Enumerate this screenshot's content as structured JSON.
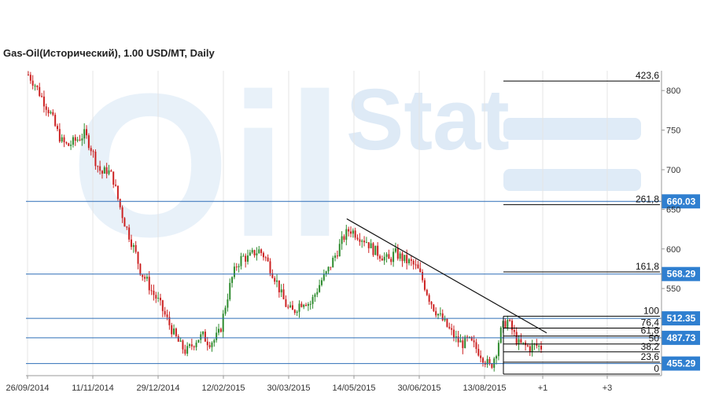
{
  "chart_data": {
    "type": "candlestick",
    "title": "Gas-Oil(Исторический), 1.00 USD/MT, Daily",
    "ylim": [
      440,
      825
    ],
    "y_ticks": [
      550,
      600,
      650,
      700,
      750,
      800
    ],
    "x_ticks": [
      "26/09/2014",
      "11/11/2014",
      "29/12/2014",
      "12/02/2015",
      "30/03/2015",
      "14/05/2015",
      "30/06/2015",
      "13/08/2015",
      "+1",
      "+3"
    ],
    "watermark": [
      "Oil",
      "Stat"
    ],
    "price_path": [
      [
        0,
        820
      ],
      [
        0.02,
        810
      ],
      [
        0.05,
        790
      ],
      [
        0.08,
        770
      ],
      [
        0.1,
        750
      ],
      [
        0.12,
        735
      ],
      [
        0.14,
        730
      ],
      [
        0.16,
        735
      ],
      [
        0.18,
        740
      ],
      [
        0.2,
        745
      ],
      [
        0.22,
        730
      ],
      [
        0.24,
        710
      ],
      [
        0.26,
        695
      ],
      [
        0.28,
        700
      ],
      [
        0.3,
        690
      ],
      [
        0.32,
        660
      ],
      [
        0.34,
        635
      ],
      [
        0.36,
        615
      ],
      [
        0.38,
        595
      ],
      [
        0.4,
        570
      ],
      [
        0.42,
        560
      ],
      [
        0.44,
        545
      ],
      [
        0.46,
        535
      ],
      [
        0.48,
        520
      ],
      [
        0.5,
        505
      ],
      [
        0.52,
        490
      ],
      [
        0.54,
        478
      ],
      [
        0.56,
        470
      ],
      [
        0.58,
        478
      ],
      [
        0.6,
        487
      ],
      [
        0.62,
        490
      ],
      [
        0.64,
        482
      ],
      [
        0.66,
        485
      ],
      [
        0.68,
        495
      ],
      [
        0.7,
        530
      ],
      [
        0.72,
        560
      ],
      [
        0.74,
        580
      ],
      [
        0.76,
        590
      ],
      [
        0.78,
        588
      ],
      [
        0.8,
        595
      ],
      [
        0.82,
        598
      ],
      [
        0.84,
        590
      ],
      [
        0.86,
        575
      ],
      [
        0.88,
        560
      ],
      [
        0.9,
        540
      ],
      [
        0.92,
        525
      ],
      [
        0.94,
        520
      ],
      [
        0.96,
        530
      ],
      [
        0.98,
        535
      ],
      [
        1.0,
        530
      ],
      [
        1.02,
        545
      ],
      [
        1.04,
        560
      ],
      [
        1.06,
        570
      ],
      [
        1.08,
        585
      ],
      [
        1.1,
        600
      ],
      [
        1.12,
        615
      ],
      [
        1.14,
        625
      ],
      [
        1.16,
        620
      ],
      [
        1.18,
        615
      ],
      [
        1.2,
        610
      ],
      [
        1.22,
        600
      ],
      [
        1.24,
        595
      ],
      [
        1.26,
        590
      ],
      [
        1.28,
        585
      ],
      [
        1.3,
        595
      ],
      [
        1.32,
        590
      ],
      [
        1.34,
        585
      ],
      [
        1.36,
        582
      ],
      [
        1.38,
        575
      ],
      [
        1.4,
        560
      ],
      [
        1.42,
        540
      ],
      [
        1.44,
        525
      ],
      [
        1.46,
        515
      ],
      [
        1.48,
        505
      ],
      [
        1.5,
        495
      ],
      [
        1.52,
        485
      ],
      [
        1.54,
        480
      ],
      [
        1.56,
        485
      ],
      [
        1.58,
        478
      ],
      [
        1.6,
        470
      ],
      [
        1.62,
        460
      ],
      [
        1.64,
        450
      ],
      [
        1.66,
        470
      ],
      [
        1.68,
        500
      ],
      [
        1.7,
        510
      ],
      [
        1.72,
        495
      ],
      [
        1.74,
        480
      ],
      [
        1.76,
        478
      ],
      [
        1.78,
        475
      ],
      [
        1.8,
        478
      ],
      [
        1.82,
        476
      ]
    ],
    "fib_levels": [
      {
        "label": "423,6",
        "value": 812
      },
      {
        "label": "261,8",
        "value": 656
      },
      {
        "label": "161,8",
        "value": 571
      },
      {
        "label": "100",
        "value": 515
      },
      {
        "label": "76,4",
        "value": 500
      },
      {
        "label": "61,8",
        "value": 490
      },
      {
        "label": "50",
        "value": 480
      },
      {
        "label": "38,2",
        "value": 470
      },
      {
        "label": "23,6",
        "value": 457
      },
      {
        "label": "0",
        "value": 442
      }
    ],
    "horizontal_levels": [
      {
        "label": "660.03",
        "value": 660.03
      },
      {
        "label": "568.29",
        "value": 568.29
      },
      {
        "label": "512.35",
        "value": 512.35
      },
      {
        "label": "487.73",
        "value": 487.73
      },
      {
        "label": "455.29",
        "value": 455.29
      }
    ],
    "trendline": {
      "from": [
        1.13,
        638
      ],
      "to": [
        1.7,
        490
      ]
    },
    "colors": {
      "up": "#2e8b2e",
      "down": "#cc2222",
      "level": "#2f6fb8",
      "badge": "#2f7fd0",
      "fib": "#000000",
      "axis": "#999999",
      "watermark": "#d7e6f5"
    }
  }
}
